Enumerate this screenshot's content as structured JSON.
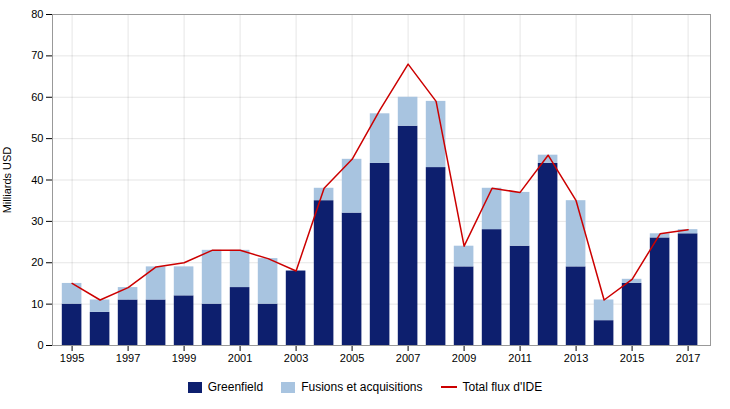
{
  "chart_data": {
    "type": "bar",
    "stacked": true,
    "x": [
      1995,
      1996,
      1997,
      1998,
      1999,
      2000,
      2001,
      2002,
      2003,
      2004,
      2005,
      2006,
      2007,
      2008,
      2009,
      2010,
      2011,
      2012,
      2013,
      2014,
      2015,
      2016,
      2017
    ],
    "series": [
      {
        "name": "Greenfield",
        "type": "bar",
        "color": "#0d1f6e",
        "values": [
          10,
          8,
          11,
          11,
          12,
          10,
          14,
          10,
          18,
          35,
          32,
          44,
          53,
          43,
          19,
          28,
          24,
          44,
          19,
          6,
          15,
          26,
          27
        ]
      },
      {
        "name": "Fusions et acquisitions",
        "type": "bar",
        "color": "#a8c4e0",
        "values": [
          5,
          3,
          3,
          8,
          7,
          13,
          9,
          11,
          0,
          3,
          13,
          12,
          7,
          16,
          5,
          10,
          13,
          2,
          16,
          5,
          1,
          1,
          1
        ]
      },
      {
        "name": "Total flux d'IDE",
        "type": "line",
        "color": "#cc0000",
        "values": [
          15,
          11,
          14,
          19,
          20,
          23,
          23,
          21,
          18,
          38,
          45,
          57,
          68,
          59,
          24,
          38,
          37,
          46,
          35,
          11,
          16,
          27,
          28
        ]
      }
    ],
    "ylabel": "Milliards USD",
    "xlim": [
      1994.3,
      2017.8
    ],
    "xticks": [
      1995,
      1997,
      1999,
      2001,
      2003,
      2005,
      2007,
      2009,
      2011,
      2013,
      2015,
      2017
    ],
    "ylim": [
      0,
      80
    ],
    "yticks": [
      0,
      10,
      20,
      30,
      40,
      50,
      60,
      70,
      80
    ],
    "grid": true,
    "legend": "bottom"
  }
}
